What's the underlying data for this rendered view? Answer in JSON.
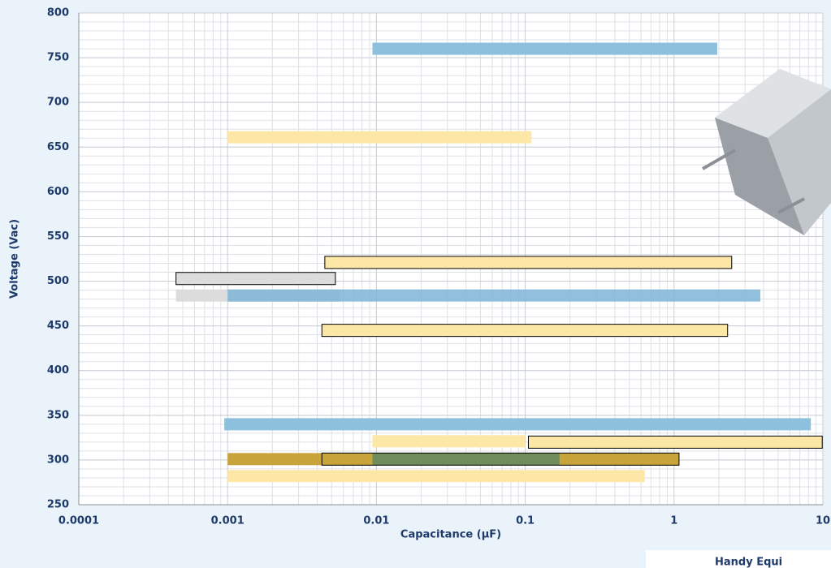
{
  "chart_data": {
    "type": "rangebar",
    "x_label": "Capacitance (μF)",
    "y_label": "Voltage (Vac)",
    "xlim": [
      0.0001,
      10
    ],
    "xticks": [
      0.0001,
      0.001,
      0.01,
      0.1,
      1,
      10
    ],
    "xscale": "log",
    "ylim": [
      250,
      800
    ],
    "yticks": [
      250,
      300,
      350,
      400,
      450,
      500,
      550,
      600,
      650,
      700,
      750,
      800
    ],
    "grid": true,
    "minor_grid": true,
    "bars": [
      {
        "y": 760,
        "x": [
          0.0094,
          1.95
        ],
        "color": "#8dc0dc",
        "outline": false
      },
      {
        "y": 661,
        "x": [
          0.001,
          0.11
        ],
        "color": "#fde7a6",
        "outline": false
      },
      {
        "y": 521,
        "x": [
          0.0045,
          2.44
        ],
        "color": "#fde7a6",
        "outline": true
      },
      {
        "y": 503,
        "x": [
          0.00045,
          0.0053
        ],
        "color": "#dcdcdc",
        "outline": true
      },
      {
        "y": 484,
        "x": [
          0.00045,
          0.0057
        ],
        "color": "#dcdcdc",
        "outline": false
      },
      {
        "y": 484,
        "x": [
          0.001,
          3.8
        ],
        "color": "#7fb4d6",
        "outline": false
      },
      {
        "y": 445,
        "x": [
          0.0043,
          2.29
        ],
        "color": "#fde7a6",
        "outline": true
      },
      {
        "y": 340,
        "x": [
          0.00095,
          8.3
        ],
        "color": "#8dc0dc",
        "outline": false
      },
      {
        "y": 321,
        "x": [
          0.0094,
          0.1
        ],
        "color": "#fde7a6",
        "outline": false
      },
      {
        "y": 320,
        "x": [
          0.105,
          9.9
        ],
        "color": "#fde7a6",
        "outline": true
      },
      {
        "y": 301,
        "x": [
          0.001,
          1.08
        ],
        "color": "#c9a43a",
        "outline": false
      },
      {
        "y": 301,
        "x": [
          0.0094,
          0.17
        ],
        "color": "#6f8c5a",
        "outline": false
      },
      {
        "y": 301,
        "x": [
          0.0043,
          1.08
        ],
        "color": "none",
        "outline": true
      },
      {
        "y": 282,
        "x": [
          0.001,
          0.635
        ],
        "color": "#fde7a6",
        "outline": false
      }
    ],
    "footer": "Handy Equi"
  }
}
